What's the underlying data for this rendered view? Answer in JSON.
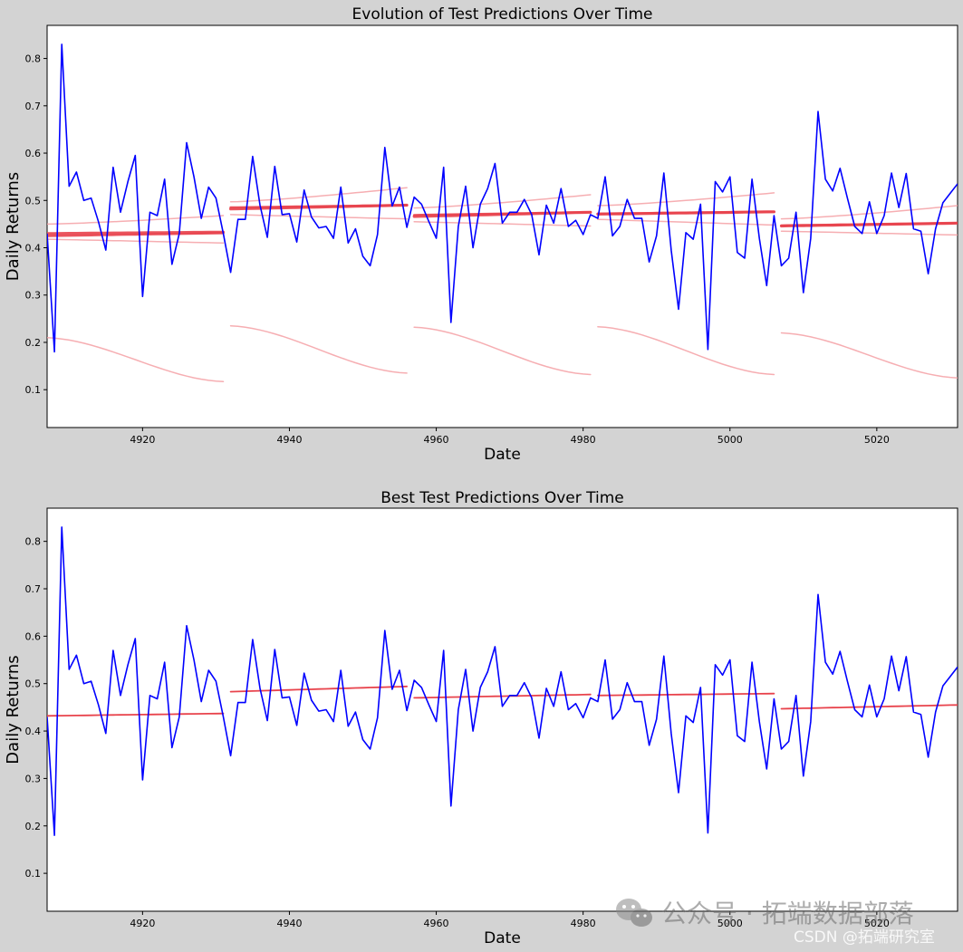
{
  "chart_data": [
    {
      "type": "line",
      "title": "Evolution of Test Predictions Over Time",
      "xlabel": "Date",
      "ylabel": "Daily Returns",
      "xlim": [
        4907,
        5031
      ],
      "ylim": [
        0.02,
        0.87
      ],
      "x_ticks": [
        4920,
        4940,
        4960,
        4980,
        5000,
        5020
      ],
      "y_ticks": [
        0.1,
        0.2,
        0.3,
        0.4,
        0.5,
        0.6,
        0.7,
        0.8
      ],
      "grid": false,
      "legend": "none",
      "series": [
        {
          "role": "actual",
          "color": "#0000ff",
          "x_start": 4907,
          "values": [
            0.43,
            0.18,
            0.83,
            0.53,
            0.56,
            0.5,
            0.505,
            0.455,
            0.395,
            0.57,
            0.475,
            0.54,
            0.595,
            0.297,
            0.475,
            0.468,
            0.545,
            0.365,
            0.43,
            0.622,
            0.55,
            0.462,
            0.528,
            0.505,
            0.43,
            0.348,
            0.46,
            0.46,
            0.593,
            0.49,
            0.422,
            0.572,
            0.47,
            0.472,
            0.412,
            0.522,
            0.465,
            0.442,
            0.445,
            0.42,
            0.528,
            0.41,
            0.44,
            0.382,
            0.362,
            0.428,
            0.612,
            0.488,
            0.528,
            0.443,
            0.507,
            0.492,
            0.455,
            0.42,
            0.57,
            0.242,
            0.445,
            0.53,
            0.4,
            0.492,
            0.525,
            0.578,
            0.452,
            0.475,
            0.475,
            0.502,
            0.47,
            0.385,
            0.49,
            0.452,
            0.525,
            0.445,
            0.458,
            0.428,
            0.47,
            0.462,
            0.55,
            0.425,
            0.445,
            0.502,
            0.462,
            0.462,
            0.37,
            0.425,
            0.558,
            0.395,
            0.27,
            0.432,
            0.418,
            0.492,
            0.185,
            0.54,
            0.518,
            0.55,
            0.39,
            0.378,
            0.545,
            0.42,
            0.32,
            0.468,
            0.362,
            0.378,
            0.475,
            0.305,
            0.42,
            0.688,
            0.545,
            0.52,
            0.568,
            0.505,
            0.445,
            0.43,
            0.497,
            0.43,
            0.468,
            0.558,
            0.485,
            0.557,
            0.44,
            0.435,
            0.345,
            0.44,
            0.495,
            0.515,
            0.535
          ]
        }
      ],
      "prediction_windows": [
        {
          "x_start": 4907,
          "x_end": 4931,
          "lines": [
            [
              0.43,
              0.433
            ],
            [
              0.425,
              0.431
            ],
            [
              0.45,
              0.468
            ],
            [
              0.418,
              0.41
            ],
            [
              0.21,
              0.117
            ]
          ]
        },
        {
          "x_start": 4932,
          "x_end": 4956,
          "lines": [
            [
              0.482,
              0.49
            ],
            [
              0.485,
              0.49
            ],
            [
              0.497,
              0.527
            ],
            [
              0.47,
              0.461
            ],
            [
              0.235,
              0.135
            ]
          ]
        },
        {
          "x_start": 4957,
          "x_end": 4981,
          "lines": [
            [
              0.466,
              0.475
            ],
            [
              0.469,
              0.475
            ],
            [
              0.484,
              0.512
            ],
            [
              0.455,
              0.446
            ],
            [
              0.232,
              0.132
            ]
          ]
        },
        {
          "x_start": 4982,
          "x_end": 5006,
          "lines": [
            [
              0.471,
              0.476
            ],
            [
              0.472,
              0.476
            ],
            [
              0.489,
              0.516
            ],
            [
              0.46,
              0.448
            ],
            [
              0.233,
              0.132
            ]
          ]
        },
        {
          "x_start": 5007,
          "x_end": 5031,
          "lines": [
            [
              0.446,
              0.452
            ],
            [
              0.447,
              0.452
            ],
            [
              0.461,
              0.489
            ],
            [
              0.435,
              0.427
            ],
            [
              0.22,
              0.125
            ]
          ]
        }
      ]
    },
    {
      "type": "line",
      "title": "Best Test Predictions Over Time",
      "xlabel": "Date",
      "ylabel": "Daily Returns",
      "xlim": [
        4907,
        5031
      ],
      "ylim": [
        0.02,
        0.87
      ],
      "x_ticks": [
        4920,
        4940,
        4960,
        4980,
        5000,
        5020
      ],
      "y_ticks": [
        0.1,
        0.2,
        0.3,
        0.4,
        0.5,
        0.6,
        0.7,
        0.8
      ],
      "grid": false,
      "legend": "none",
      "series": [
        {
          "role": "actual",
          "color": "#0000ff",
          "x_start": 4907,
          "values": "same as chart 1"
        }
      ],
      "prediction_windows": [
        {
          "x_start": 4907,
          "x_end": 4931,
          "lines": [
            [
              0.432,
              0.437
            ]
          ]
        },
        {
          "x_start": 4932,
          "x_end": 4956,
          "lines": [
            [
              0.483,
              0.494
            ]
          ]
        },
        {
          "x_start": 4957,
          "x_end": 4981,
          "lines": [
            [
              0.47,
              0.477
            ]
          ]
        },
        {
          "x_start": 4982,
          "x_end": 5006,
          "lines": [
            [
              0.475,
              0.479
            ]
          ]
        },
        {
          "x_start": 5007,
          "x_end": 5031,
          "lines": [
            [
              0.447,
              0.455
            ]
          ]
        }
      ]
    }
  ],
  "colors": {
    "background": "#d3d3d3",
    "plot_area": "#ffffff",
    "actual": "#0000ff",
    "prediction": "#e8434c",
    "prediction_faint": "#f4a0a4"
  },
  "watermark": {
    "line1": "公众号 · 拓端数据部落",
    "line2": "CSDN @拓端研究室",
    "icon": "wechat-icon"
  }
}
